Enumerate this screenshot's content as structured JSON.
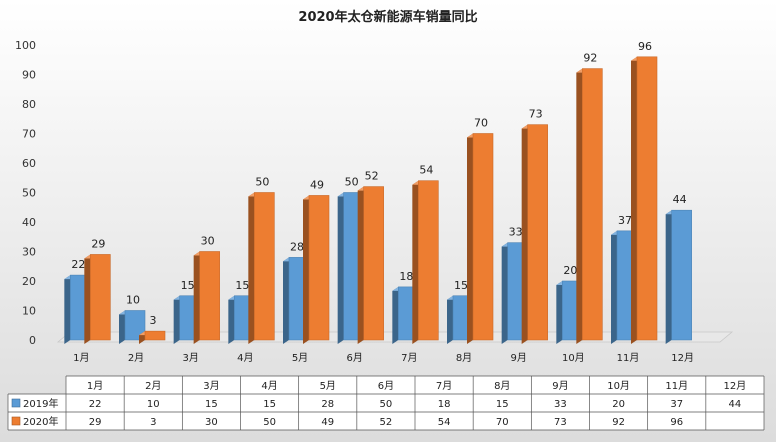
{
  "chart_data": {
    "type": "bar",
    "title": "2020年太仓新能源车销量同比",
    "categories": [
      "1月",
      "2月",
      "3月",
      "4月",
      "5月",
      "6月",
      "7月",
      "8月",
      "9月",
      "10月",
      "11月",
      "12月"
    ],
    "series": [
      {
        "name": "2019年",
        "values": [
          22,
          10,
          15,
          15,
          28,
          50,
          18,
          15,
          33,
          20,
          37,
          44
        ],
        "color": "#5b9bd5"
      },
      {
        "name": "2020年",
        "values": [
          29,
          3,
          30,
          50,
          49,
          52,
          54,
          70,
          73,
          92,
          96,
          null
        ],
        "color": "#ed7d31"
      }
    ],
    "ylim": [
      0,
      100
    ],
    "yticks": [
      0,
      10,
      20,
      30,
      40,
      50,
      60,
      70,
      80,
      90,
      100
    ],
    "grid": false,
    "legend": "data-table",
    "data_table": true
  }
}
